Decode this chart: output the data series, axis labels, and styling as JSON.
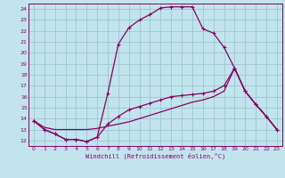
{
  "xlabel": "Windchill (Refroidissement éolien,°C)",
  "bg_color": "#c2e4ec",
  "grid_color": "#9ac8d4",
  "line_color": "#880066",
  "xlim": [
    -0.5,
    23.5
  ],
  "ylim": [
    11.5,
    24.5
  ],
  "yticks": [
    12,
    13,
    14,
    15,
    16,
    17,
    18,
    19,
    20,
    21,
    22,
    23,
    24
  ],
  "xticks": [
    0,
    1,
    2,
    3,
    4,
    5,
    6,
    7,
    8,
    9,
    10,
    11,
    12,
    13,
    14,
    15,
    16,
    17,
    18,
    19,
    20,
    21,
    22,
    23
  ],
  "series1_x": [
    0,
    1,
    2,
    3,
    4,
    5,
    6,
    7,
    8,
    9,
    10,
    11,
    12,
    13,
    14,
    15,
    16,
    17,
    18,
    19,
    20,
    21,
    22,
    23
  ],
  "series1_y": [
    13.8,
    13.0,
    12.6,
    12.1,
    12.1,
    11.9,
    12.3,
    16.3,
    20.8,
    22.3,
    23.0,
    23.5,
    24.1,
    24.2,
    24.2,
    24.2,
    22.2,
    21.8,
    20.5,
    18.6,
    16.5,
    15.3,
    14.2,
    13.0
  ],
  "series2_x": [
    0,
    1,
    2,
    3,
    4,
    5,
    6,
    7,
    8,
    9,
    10,
    11,
    12,
    13,
    14,
    15,
    16,
    17,
    18,
    19,
    20,
    21,
    22,
    23
  ],
  "series2_y": [
    13.8,
    13.0,
    12.6,
    12.1,
    12.1,
    11.9,
    12.3,
    13.5,
    14.2,
    14.8,
    15.1,
    15.4,
    15.7,
    16.0,
    16.1,
    16.2,
    16.3,
    16.5,
    17.0,
    18.6,
    16.5,
    15.3,
    14.2,
    13.0
  ],
  "series3_x": [
    0,
    1,
    2,
    3,
    4,
    5,
    6,
    7,
    8,
    9,
    10,
    11,
    12,
    13,
    14,
    15,
    16,
    17,
    18,
    19,
    20,
    21,
    22,
    23
  ],
  "series3_y": [
    13.8,
    13.2,
    13.0,
    13.0,
    13.0,
    13.0,
    13.1,
    13.3,
    13.5,
    13.7,
    14.0,
    14.3,
    14.6,
    14.9,
    15.2,
    15.5,
    15.7,
    16.0,
    16.5,
    18.6,
    16.5,
    15.3,
    14.2,
    13.0
  ]
}
